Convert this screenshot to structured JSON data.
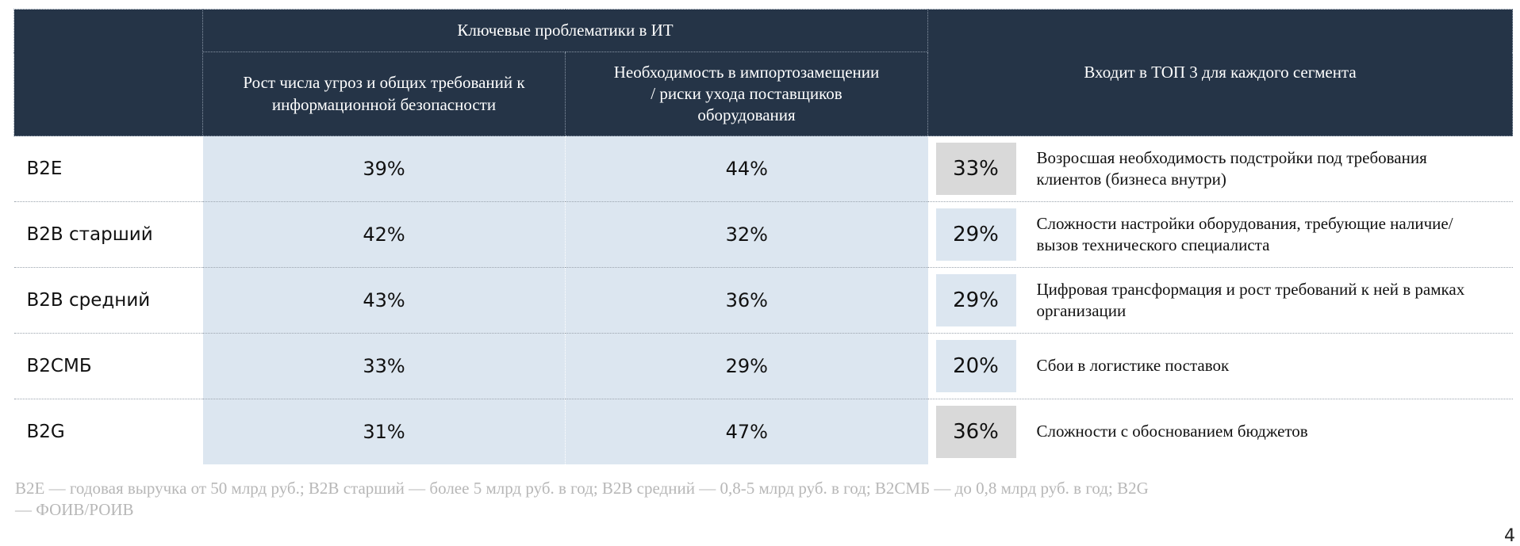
{
  "table": {
    "group_header": "Ключевые проблематики в ИТ",
    "columns": [
      "Рост числа угроз и общих требований к информационной безопасности",
      "Необходимость в импортозамещении / риски ухода поставщиков оборудования",
      "Входит в ТОП 3 для каждого сегмента"
    ],
    "rows": [
      [
        "B2E",
        "39%",
        "44%",
        "33%",
        "Возросшая необходимость подстройки под требования клиентов (бизнеса внутри)"
      ],
      [
        "B2B старший",
        "42%",
        "32%",
        "29%",
        "Сложности настройки оборудования, требующие наличие/вызов технического специалиста"
      ],
      [
        "B2B средний",
        "43%",
        "36%",
        "29%",
        "Цифровая трансформация и рост требований к ней в рамках организации"
      ],
      [
        "B2СМБ",
        "33%",
        "29%",
        "20%",
        "Сбои в логистике поставок"
      ],
      [
        "B2G",
        "31%",
        "47%",
        "36%",
        "Сложности с обоснованием бюджетов"
      ]
    ]
  },
  "footnote": "B2E — годовая выручка от 50 млрд руб.; B2B старший — более 5 млрд руб. в год; B2B средний — 0,8-5 млрд руб. в год; B2СМБ — до 0,8 млрд руб. в год; B2G — ФОИВ/РОИВ",
  "page_number": "4"
}
